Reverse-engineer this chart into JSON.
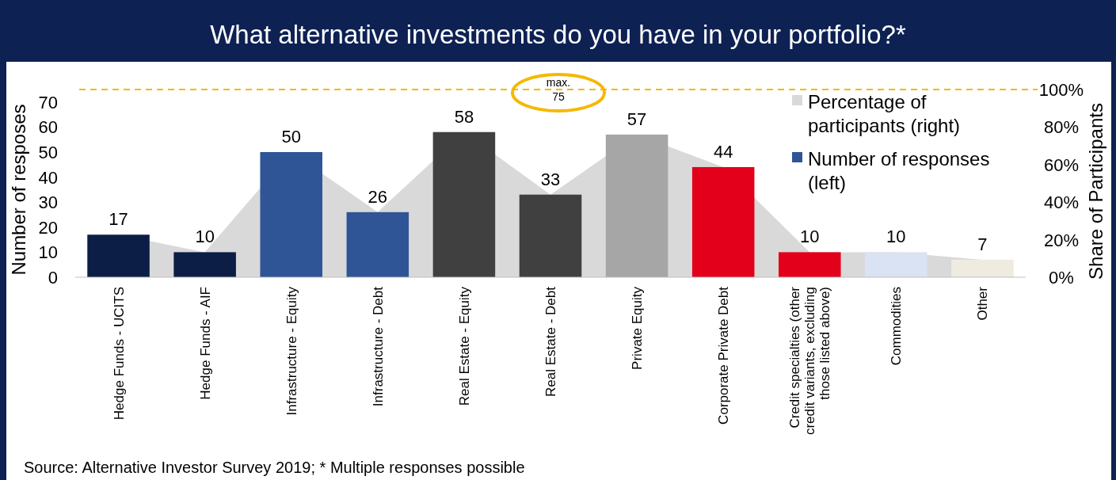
{
  "chart_data": {
    "type": "bar",
    "title": "What alternative investments do you have in your portfolio?*",
    "categories": [
      "Hedge Funds - UCITS",
      "Hedge Funds - AIF",
      "Infrastructure - Equity",
      "Infrastructure - Debt",
      "Real Estate - Equity",
      "Real Estate - Debt",
      "Private Equity",
      "Corporate Private Debt",
      "Credit specialties (other credit variants, excluding those listed above)",
      "Commodities",
      "Other"
    ],
    "series": [
      {
        "name": "Percentage of participants (right)",
        "type": "area",
        "axis": "y2",
        "color": "#d9d9d9",
        "values": [
          22.7,
          13.3,
          66.7,
          34.7,
          77.3,
          44,
          76,
          58.7,
          13.3,
          13.3,
          9.3
        ]
      },
      {
        "name": "Number of responses (left)",
        "color": "#2f5597",
        "colors": [
          "#0c1e45",
          "#0c1e45",
          "#2f5597",
          "#2f5597",
          "#404040",
          "#404040",
          "#a6a6a6",
          "#e2001a",
          "#e2001a",
          "#dae3f3",
          "#eeece1"
        ],
        "values": [
          17,
          10,
          50,
          26,
          58,
          33,
          57,
          44,
          10,
          10,
          7
        ],
        "value_labels": [
          "17",
          "10",
          "50",
          "26",
          "58",
          "33",
          "57",
          "44",
          "10",
          "10",
          "7"
        ]
      }
    ],
    "ylabel": "Number of resposes",
    "y2label": "Share of Participants",
    "ylim": [
      0,
      75
    ],
    "yticks": [
      0,
      10,
      20,
      30,
      40,
      50,
      60,
      70
    ],
    "y2lim": [
      0,
      100
    ],
    "y2ticks": [
      {
        "value": 0,
        "label": "0%"
      },
      {
        "value": 20,
        "label": "20%"
      },
      {
        "value": 40,
        "label": "40%"
      },
      {
        "value": 60,
        "label": "60%"
      },
      {
        "value": 80,
        "label": "80%"
      },
      {
        "value": 100,
        "label": "100%"
      }
    ],
    "ref_lines": [
      {
        "axis": "y",
        "value": 75,
        "label": "max. 75",
        "color": "#f5b800",
        "line_style": "dashed"
      }
    ],
    "legend": "top right",
    "grid": false,
    "annotations": [
      "Source: Alternative Investor Survey 2019; * Multiple responses possible"
    ]
  }
}
